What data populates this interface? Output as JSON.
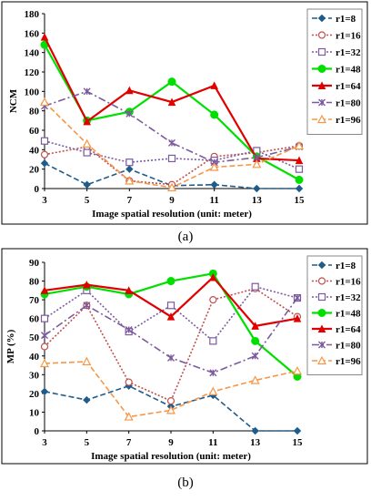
{
  "captions": {
    "a": "(a)",
    "b": "(b)"
  },
  "chart_data": [
    {
      "type": "line",
      "panel": "a",
      "xlabel": "Image spatial resolution (unit: meter)",
      "ylabel": "NCM",
      "x": [
        3,
        5,
        7,
        9,
        11,
        13,
        15
      ],
      "xlim": [
        3,
        15
      ],
      "ylim": [
        0,
        180
      ],
      "yticks": [
        0,
        20,
        40,
        60,
        80,
        100,
        120,
        140,
        160,
        180
      ],
      "grid": false,
      "legend": "right",
      "series": [
        {
          "name": "r1=8",
          "color": "#1F5C8B",
          "dash": "dashed",
          "marker": "diamond",
          "values": [
            26,
            4,
            20,
            3,
            4,
            0,
            0
          ]
        },
        {
          "name": "r1=16",
          "color": "#C0504D",
          "dash": "dotted",
          "marker": "circle",
          "values": [
            35,
            43,
            8,
            4,
            33,
            37,
            44
          ]
        },
        {
          "name": "r1=32",
          "color": "#7B5A9E",
          "dash": "dotted",
          "marker": "square",
          "values": [
            49,
            37,
            27,
            31,
            29,
            39,
            20
          ]
        },
        {
          "name": "r1=48",
          "color": "#00E000",
          "dash": "solid",
          "marker": "dot",
          "values": [
            148,
            70,
            79,
            110,
            76,
            33,
            9
          ]
        },
        {
          "name": "r1=64",
          "color": "#E00000",
          "dash": "solid",
          "marker": "triangle",
          "values": [
            156,
            69,
            101,
            89,
            106,
            31,
            29
          ]
        },
        {
          "name": "r1=80",
          "color": "#7B5A9E",
          "dash": "dashdot",
          "marker": "x",
          "values": [
            85,
            100,
            77,
            47,
            27,
            32,
            43
          ]
        },
        {
          "name": "r1=96",
          "color": "#F79646",
          "dash": "dashed",
          "marker": "triangle-open",
          "values": [
            89,
            46,
            8,
            1,
            22,
            25,
            44
          ]
        }
      ]
    },
    {
      "type": "line",
      "panel": "b",
      "xlabel": "Image spatial resolution (unit: meter)",
      "ylabel": "MP (%)",
      "x": [
        3,
        5,
        7,
        9,
        11,
        13,
        15
      ],
      "xlim": [
        3,
        15
      ],
      "ylim": [
        0,
        90
      ],
      "yticks": [
        0,
        10,
        20,
        30,
        40,
        50,
        60,
        70,
        80,
        90
      ],
      "grid": false,
      "legend": "right",
      "series": [
        {
          "name": "r1=8",
          "color": "#1F5C8B",
          "dash": "dashed",
          "marker": "diamond",
          "values": [
            21,
            16.5,
            24,
            13,
            19,
            0,
            0
          ]
        },
        {
          "name": "r1=16",
          "color": "#C0504D",
          "dash": "dotted",
          "marker": "circle",
          "values": [
            45,
            67,
            26,
            16,
            70,
            76,
            61
          ]
        },
        {
          "name": "r1=32",
          "color": "#7B5A9E",
          "dash": "dotted",
          "marker": "square",
          "values": [
            60,
            75,
            53,
            67,
            48,
            77,
            71
          ]
        },
        {
          "name": "r1=48",
          "color": "#00E000",
          "dash": "solid",
          "marker": "dot",
          "values": [
            73,
            77,
            73,
            80,
            84,
            48,
            29
          ]
        },
        {
          "name": "r1=64",
          "color": "#E00000",
          "dash": "solid",
          "marker": "triangle",
          "values": [
            75,
            78,
            75,
            61,
            82,
            56,
            60
          ]
        },
        {
          "name": "r1=80",
          "color": "#7B5A9E",
          "dash": "dashdot",
          "marker": "x",
          "values": [
            51,
            67,
            54,
            39,
            31,
            40,
            71
          ]
        },
        {
          "name": "r1=96",
          "color": "#F79646",
          "dash": "dashed",
          "marker": "triangle-open",
          "values": [
            36,
            37,
            7.5,
            11,
            21,
            27,
            32
          ]
        }
      ]
    }
  ]
}
